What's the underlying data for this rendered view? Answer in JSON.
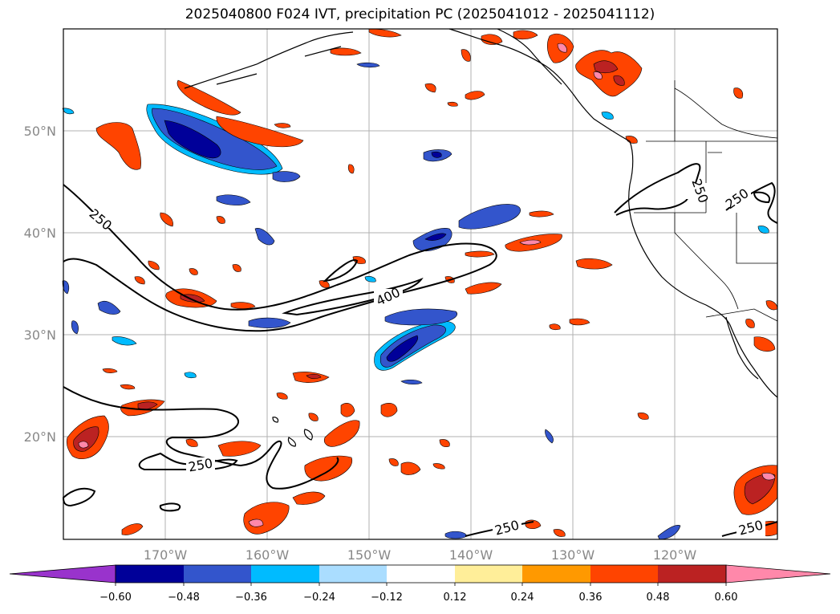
{
  "title": "2025040800 F024 IVT, precipitation PC (2025041012 - 2025041112)",
  "lat_labels": [
    "50°N",
    "40°N",
    "30°N",
    "20°N"
  ],
  "lon_labels": [
    "170°W",
    "160°W",
    "150°W",
    "140°W",
    "130°W",
    "120°W"
  ],
  "contour_labels": [
    "250",
    "400",
    "250",
    "250",
    "250",
    "250"
  ],
  "colorbar": {
    "ticks": [
      "−0.60",
      "−0.48",
      "−0.36",
      "−0.24",
      "−0.12",
      "0.12",
      "0.24",
      "0.36",
      "0.48",
      "0.60"
    ],
    "colors": [
      "#9933cc",
      "#000099",
      "#3355cc",
      "#00bbff",
      "#aaddff",
      "#ffffff",
      "#ffee99",
      "#ff9900",
      "#ff4400",
      "#bb2222",
      "#ff88aa"
    ]
  },
  "colors": {
    "neg_strong": "#000099",
    "neg_mid": "#3355cc",
    "neg_light": "#00bbff",
    "pos_light": "#ffcc33",
    "pos_mid": "#ff4400",
    "pos_strong": "#bb2222",
    "pos_peak": "#ff88aa"
  }
}
